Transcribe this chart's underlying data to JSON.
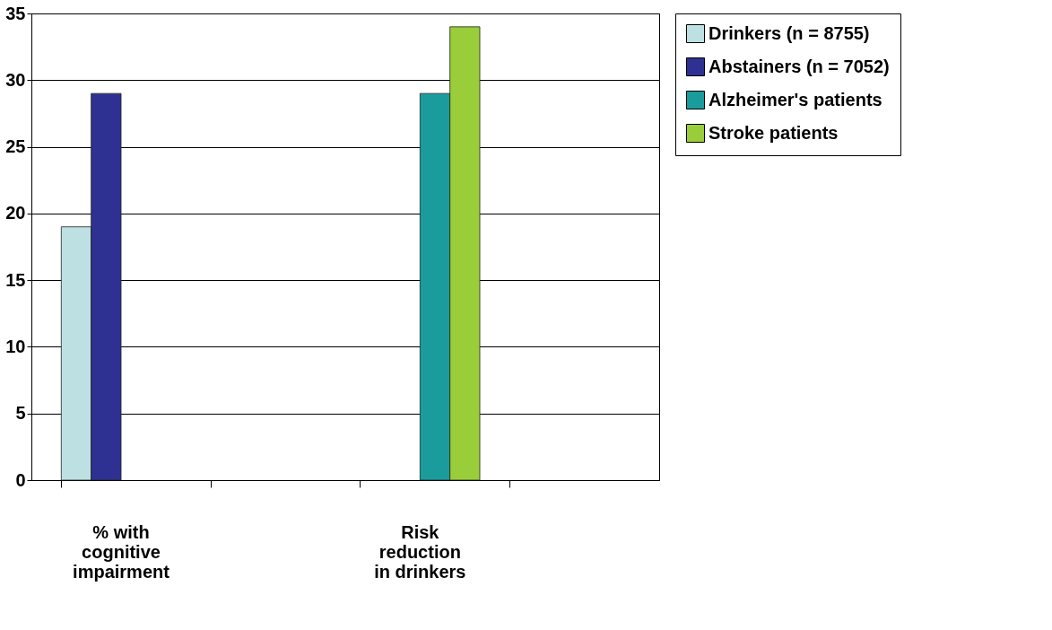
{
  "chart_data": {
    "type": "bar",
    "categories": [
      "% with cognitive impairment",
      null,
      "Risk reduction in drinkers",
      null
    ],
    "series": [
      {
        "name": "Drinkers (n = 8755)",
        "color": "#bde0e3",
        "values": [
          19,
          null,
          null,
          null
        ]
      },
      {
        "name": "Abstainers (n = 7052)",
        "color": "#2e3192",
        "values": [
          29,
          null,
          null,
          null
        ]
      },
      {
        "name": "Alzheimer's patients",
        "color": "#1a9c9c",
        "values": [
          null,
          null,
          29,
          null
        ]
      },
      {
        "name": "Stroke patients",
        "color": "#9acd3a",
        "values": [
          null,
          null,
          34,
          null
        ]
      }
    ],
    "ylim": [
      0,
      35
    ],
    "yticks": [
      0,
      5,
      10,
      15,
      20,
      25,
      30,
      35
    ],
    "grid": "y",
    "legend": "right"
  }
}
